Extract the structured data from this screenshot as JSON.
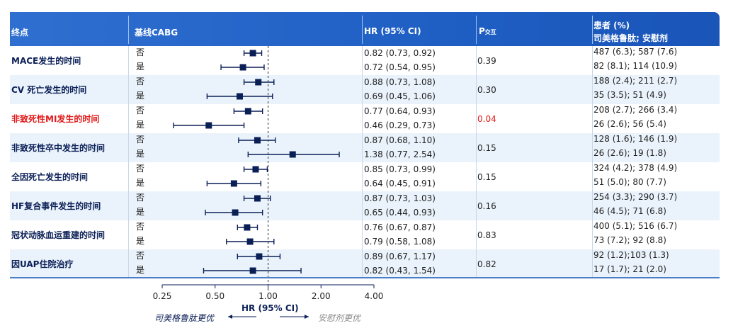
{
  "header": {
    "endpoint": "终点",
    "baseline": "基线CABG",
    "hr": "HR (95% CI)",
    "p_main": "P",
    "p_sub": "交互",
    "patients_line1": "患者 (%)",
    "patients_line2": "司美格鲁肽; 安慰剂"
  },
  "subgroups": [
    "否",
    "是"
  ],
  "axis": {
    "label": "HR (95% CI)",
    "favor_left": "司美格鲁肽更优",
    "favor_right": "安慰剂更优"
  },
  "colors": {
    "accent": "#1f5fc4",
    "marker": "#0b1f57",
    "highlight": "#e21a1a"
  },
  "chart_data": {
    "type": "forest",
    "xscale": "log",
    "xlim": [
      0.25,
      4.0
    ],
    "xticks": [
      0.25,
      0.5,
      1.0,
      2.0,
      4.0
    ],
    "xtick_labels": [
      "0.25",
      "0.50",
      "1.00",
      "2.00",
      "4.00"
    ],
    "reference_line": 1.0,
    "rows": [
      {
        "endpoint": "MACE发生的时间",
        "highlight": false,
        "p": "0.39",
        "groups": [
          {
            "hr": 0.82,
            "lo": 0.73,
            "hi": 0.92,
            "ci_text": "0.82 (0.73, 0.92)",
            "patients": "487 (6.3); 587 (7.6)"
          },
          {
            "hr": 0.72,
            "lo": 0.54,
            "hi": 0.95,
            "ci_text": "0.72 (0.54, 0.95)",
            "patients": "82 (8.1); 114 (10.9)"
          }
        ]
      },
      {
        "endpoint": "CV 死亡发生的时间",
        "highlight": false,
        "p": "0.30",
        "groups": [
          {
            "hr": 0.88,
            "lo": 0.73,
            "hi": 1.08,
            "ci_text": "0.88 (0.73, 1.08)",
            "patients": "188 (2.4); 211 (2.7)"
          },
          {
            "hr": 0.69,
            "lo": 0.45,
            "hi": 1.06,
            "ci_text": "0.69 (0.45, 1.06)",
            "patients": "35 (3.5); 51 (4.9)"
          }
        ]
      },
      {
        "endpoint": "非致死性MI发生的时间",
        "highlight": true,
        "p": "0.04",
        "groups": [
          {
            "hr": 0.77,
            "lo": 0.64,
            "hi": 0.93,
            "ci_text": "0.77 (0.64, 0.93)",
            "patients": "208 (2.7); 266 (3.4)"
          },
          {
            "hr": 0.46,
            "lo": 0.29,
            "hi": 0.73,
            "ci_text": "0.46 (0.29, 0.73)",
            "patients": "26 (2.6); 56 (5.4)"
          }
        ]
      },
      {
        "endpoint": "非致死性卒中发生的时间",
        "highlight": false,
        "p": "0.15",
        "groups": [
          {
            "hr": 0.87,
            "lo": 0.68,
            "hi": 1.1,
            "ci_text": "0.87 (0.68, 1.10)",
            "patients": "128 (1.6); 146 (1.9)"
          },
          {
            "hr": 1.38,
            "lo": 0.77,
            "hi": 2.54,
            "ci_text": "1.38 (0.77, 2.54)",
            "patients": "26 (2.6); 19 (1.8)"
          }
        ]
      },
      {
        "endpoint": "全因死亡发生的时间",
        "highlight": false,
        "p": "0.15",
        "groups": [
          {
            "hr": 0.85,
            "lo": 0.73,
            "hi": 0.99,
            "ci_text": "0.85 (0.73, 0.99)",
            "patients": "324 (4.2); 378 (4.9)"
          },
          {
            "hr": 0.64,
            "lo": 0.45,
            "hi": 0.91,
            "ci_text": "0.64 (0.45, 0.91)",
            "patients": "51 (5.0); 80 (7.7)"
          }
        ]
      },
      {
        "endpoint": "HF复合事件发生的时间",
        "highlight": false,
        "p": "0.16",
        "groups": [
          {
            "hr": 0.87,
            "lo": 0.73,
            "hi": 1.03,
            "ci_text": "0.87 (0.73, 1.03)",
            "patients": "254 (3.3); 290 (3.7)"
          },
          {
            "hr": 0.65,
            "lo": 0.44,
            "hi": 0.93,
            "ci_text": "0.65 (0.44, 0.93)",
            "patients": "46 (4.5); 71 (6.8)"
          }
        ]
      },
      {
        "endpoint": "冠状动脉血运重建的时间",
        "highlight": false,
        "p": "0.83",
        "groups": [
          {
            "hr": 0.76,
            "lo": 0.67,
            "hi": 0.87,
            "ci_text": "0.76 (0.67, 0.87)",
            "patients": "400 (5.1); 516 (6.7)"
          },
          {
            "hr": 0.79,
            "lo": 0.58,
            "hi": 1.08,
            "ci_text": "0.79 (0.58, 1.08)",
            "patients": "73 (7.2); 92 (8.8)"
          }
        ]
      },
      {
        "endpoint": "因UAP住院治疗",
        "highlight": false,
        "p": "0.82",
        "groups": [
          {
            "hr": 0.89,
            "lo": 0.67,
            "hi": 1.17,
            "ci_text": "0.89 (0.67, 1.17)",
            "patients": "92 (1.2);103 (1.3)"
          },
          {
            "hr": 0.82,
            "lo": 0.43,
            "hi": 1.54,
            "ci_text": "0.82 (0.43, 1.54)",
            "patients": "17 (1.7); 21 (2.0)"
          }
        ]
      }
    ]
  }
}
